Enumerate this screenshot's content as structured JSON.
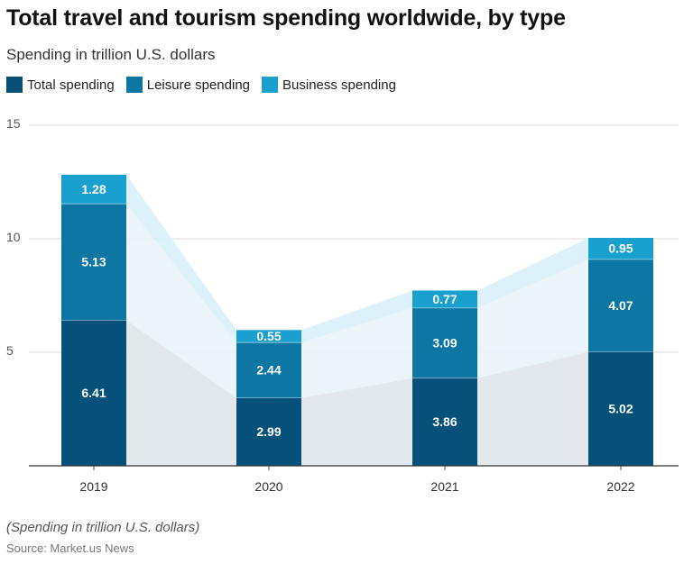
{
  "header": {
    "title": "Total travel and tourism spending worldwide, by type",
    "subtitle": "Spending in trillion U.S. dollars"
  },
  "footer": {
    "note": "(Spending in trillion U.S. dollars)",
    "source": "Source: Market.us News"
  },
  "colors": {
    "total": "#06517a",
    "leisure": "#0d76a3",
    "business": "#1aa0cf",
    "band_total": "#dfe5ea",
    "band_leisure": "#e8f3f8",
    "band_business": "#d8f0f9",
    "grid": "#d9d9d9",
    "axis": "#555555"
  },
  "chart_data": {
    "type": "bar",
    "stacked": true,
    "categories": [
      "2019",
      "2020",
      "2021",
      "2022"
    ],
    "series": [
      {
        "name": "Total spending",
        "values": [
          6.41,
          2.99,
          3.86,
          5.02
        ]
      },
      {
        "name": "Leisure spending",
        "values": [
          5.13,
          2.44,
          3.09,
          4.07
        ]
      },
      {
        "name": "Business spending",
        "values": [
          1.28,
          0.55,
          0.77,
          0.95
        ]
      }
    ],
    "ylim": [
      0,
      15
    ],
    "yticks": [
      "5",
      "10",
      "15"
    ],
    "grid": true,
    "legend": "top-left"
  }
}
